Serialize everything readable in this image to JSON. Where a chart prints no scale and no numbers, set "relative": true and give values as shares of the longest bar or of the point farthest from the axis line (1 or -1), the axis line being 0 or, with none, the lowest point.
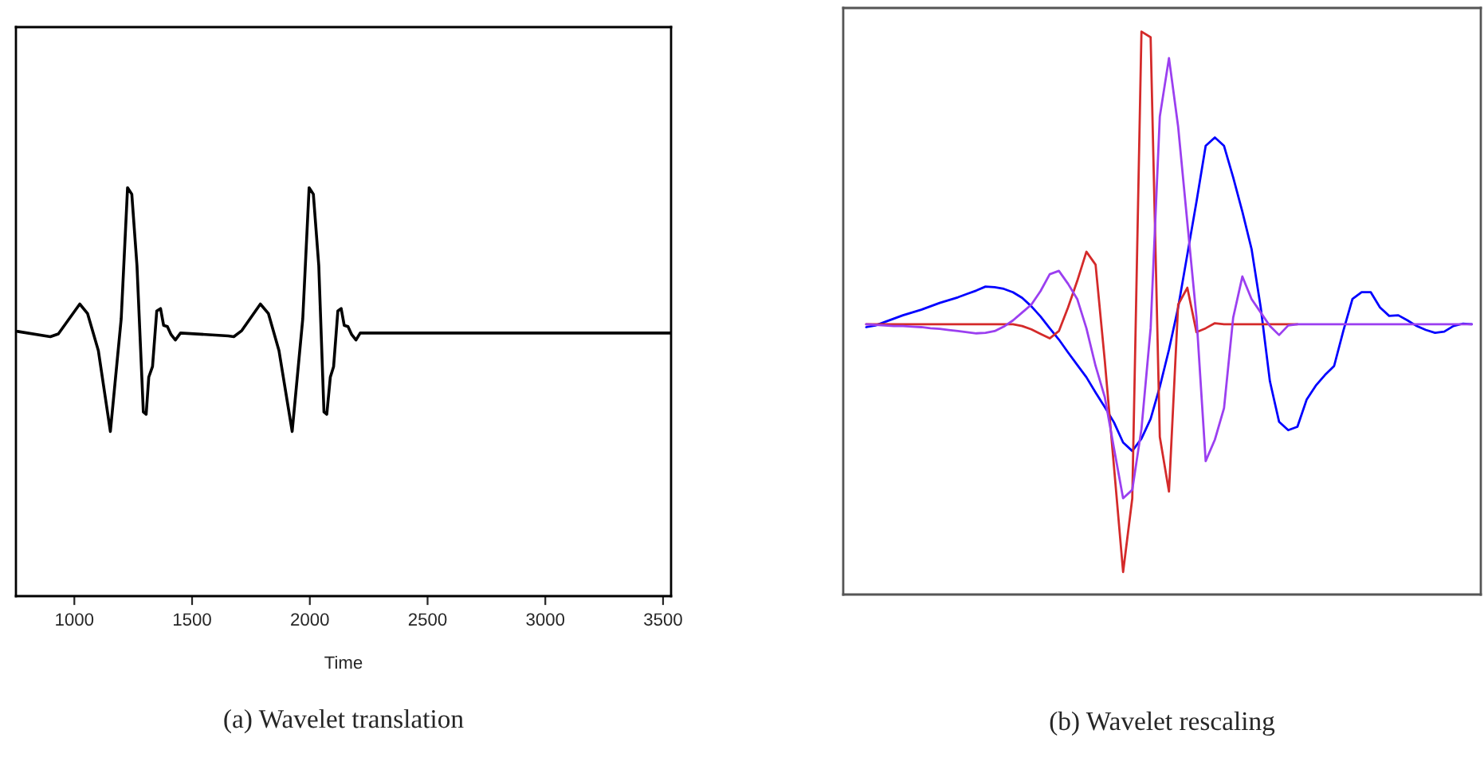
{
  "chart_data": [
    {
      "type": "line",
      "title": "(a) Wavelet translation",
      "xlabel": "Time",
      "relative": true,
      "tick_labels": "x",
      "xlim": [
        752,
        3534
      ],
      "xticks": [
        1000,
        1500,
        2000,
        2500,
        3000,
        3500
      ],
      "series": [
        {
          "color": "#000000",
          "x": [
            759,
            898,
            932,
            1023,
            1056,
            1102,
            1153,
            1199,
            1226,
            1244,
            1266,
            1293,
            1305,
            1316,
            1332,
            1350,
            1366,
            1379,
            1395,
            1411,
            1429,
            1451,
            1654,
            1677,
            1711,
            1790,
            1824,
            1869,
            1925,
            1970,
            1997,
            2015,
            2038,
            2060,
            2072,
            2087,
            2101,
            2119,
            2133,
            2146,
            2162,
            2178,
            2196,
            2214,
            2286,
            3534
          ],
          "values": [
            0.648,
            0.635,
            0.642,
            0.715,
            0.692,
            0.601,
            0.403,
            0.679,
            1.0,
            0.984,
            0.809,
            0.451,
            0.445,
            0.536,
            0.562,
            0.698,
            0.704,
            0.663,
            0.66,
            0.64,
            0.627,
            0.644,
            0.637,
            0.635,
            0.65,
            0.715,
            0.692,
            0.601,
            0.403,
            0.679,
            1.0,
            0.984,
            0.809,
            0.451,
            0.445,
            0.536,
            0.562,
            0.698,
            0.704,
            0.663,
            0.66,
            0.64,
            0.627,
            0.644,
            0.644,
            0.644
          ]
        }
      ]
    },
    {
      "type": "line",
      "title": "(b) Wavelet rescaling",
      "relative": true,
      "tick_labels": false,
      "categories": [
        null,
        null,
        null,
        null,
        null,
        null,
        null,
        null,
        null,
        null,
        null,
        null,
        null,
        null,
        null,
        null,
        null,
        null,
        null,
        null,
        null,
        null,
        null,
        null,
        null,
        null,
        null,
        null,
        null,
        null,
        null,
        null,
        null,
        null,
        null,
        null,
        null,
        null,
        null,
        null,
        null,
        null,
        null,
        null,
        null,
        null,
        null,
        null,
        null,
        null,
        null,
        null,
        null,
        null,
        null,
        null,
        null,
        null,
        null,
        null,
        null,
        null,
        null,
        null,
        null,
        null,
        null
      ],
      "series": [
        {
          "color": "#0000ff",
          "values": [
            0.475,
            0.478,
            0.484,
            0.49,
            0.496,
            0.501,
            0.506,
            0.512,
            0.518,
            0.523,
            0.528,
            0.534,
            0.54,
            0.547,
            0.546,
            0.543,
            0.537,
            0.527,
            0.512,
            0.494,
            0.473,
            0.453,
            0.43,
            0.408,
            0.386,
            0.359,
            0.333,
            0.306,
            0.27,
            0.255,
            0.277,
            0.312,
            0.369,
            0.435,
            0.51,
            0.604,
            0.698,
            0.797,
            0.812,
            0.797,
            0.741,
            0.68,
            0.614,
            0.51,
            0.379,
            0.307,
            0.292,
            0.298,
            0.346,
            0.371,
            0.39,
            0.406,
            0.468,
            0.525,
            0.537,
            0.537,
            0.51,
            0.495,
            0.496,
            0.487,
            0.477,
            0.47,
            0.465,
            0.467,
            0.477,
            0.481,
            0.48
          ]
        },
        {
          "color": "#d42a2a",
          "values": [
            0.48,
            0.48,
            0.48,
            0.48,
            0.48,
            0.48,
            0.48,
            0.48,
            0.48,
            0.48,
            0.48,
            0.48,
            0.48,
            0.48,
            0.48,
            0.48,
            0.48,
            0.477,
            0.471,
            0.463,
            0.455,
            0.468,
            0.51,
            0.557,
            0.609,
            0.586,
            0.416,
            0.228,
            0.04,
            0.171,
            1.0,
            0.99,
            0.28,
            0.183,
            0.515,
            0.545,
            0.466,
            0.473,
            0.482,
            0.48,
            0.48,
            0.48,
            0.48,
            0.48,
            0.48,
            0.48,
            0.48,
            0.48,
            null,
            null,
            null,
            null,
            null,
            null,
            null,
            null,
            null,
            null,
            null,
            null,
            null,
            null,
            null,
            null,
            null,
            null,
            null
          ]
        },
        {
          "color": "#9b3ff0",
          "values": [
            0.48,
            0.479,
            0.478,
            0.477,
            0.477,
            0.476,
            0.475,
            0.473,
            0.472,
            0.47,
            0.468,
            0.466,
            0.464,
            0.465,
            0.468,
            0.476,
            0.487,
            0.501,
            0.515,
            0.539,
            0.569,
            0.575,
            0.552,
            0.525,
            0.473,
            0.406,
            0.351,
            0.26,
            0.171,
            0.186,
            0.294,
            0.473,
            0.849,
            0.953,
            0.831,
            0.661,
            0.492,
            0.237,
            0.275,
            0.331,
            0.492,
            0.565,
            0.525,
            0.501,
            0.477,
            0.461,
            0.478,
            0.48,
            0.48,
            0.48,
            0.48,
            0.48,
            0.48,
            0.48,
            0.48,
            0.48,
            0.48,
            0.48,
            0.48,
            0.48,
            0.48,
            0.48,
            0.48,
            0.48,
            0.48,
            0.48,
            0.48
          ]
        }
      ]
    }
  ]
}
